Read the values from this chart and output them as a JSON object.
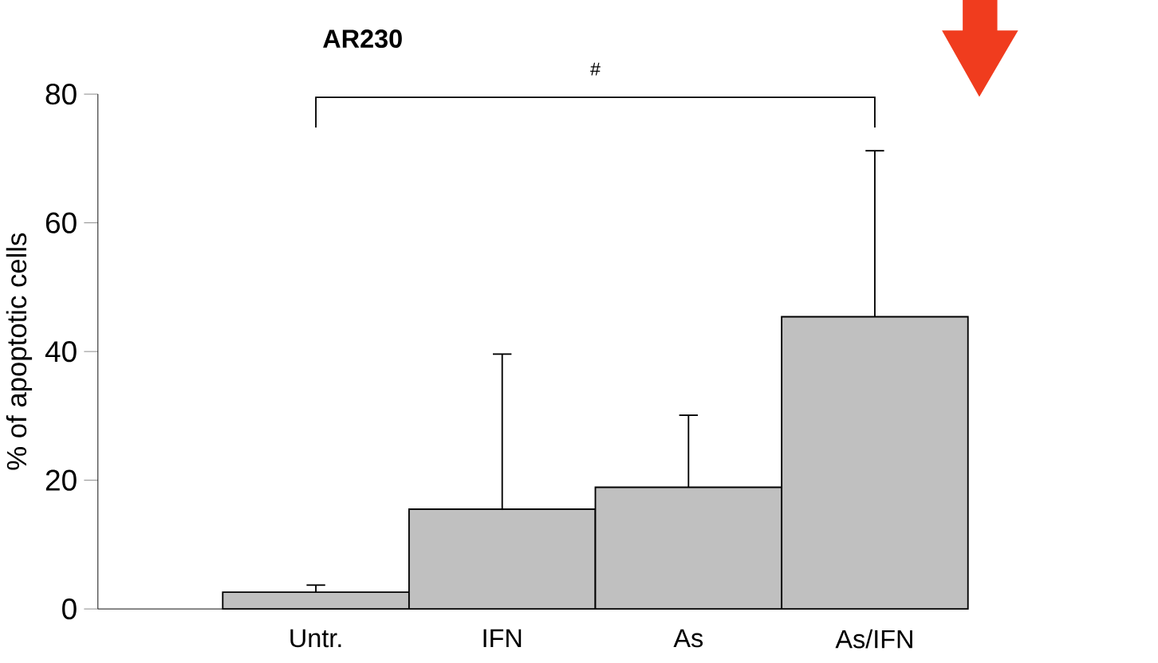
{
  "chart_data": {
    "type": "bar",
    "title": "AR230",
    "ylabel": "% of apoptotic cells",
    "categories": [
      "Untr.",
      "IFN",
      "As",
      "As/IFN"
    ],
    "values": [
      2.6,
      15.5,
      18.9,
      45.4
    ],
    "errors": [
      [
        2.6,
        3.7
      ],
      [
        15.5,
        39.6
      ],
      [
        18.9,
        30.1
      ],
      [
        45.4,
        71.2
      ]
    ],
    "color": "#c0c0c0",
    "ylim": [
      0,
      80
    ],
    "yticks": [
      0,
      20,
      40,
      60,
      80
    ],
    "annotations": [
      "#"
    ]
  }
}
